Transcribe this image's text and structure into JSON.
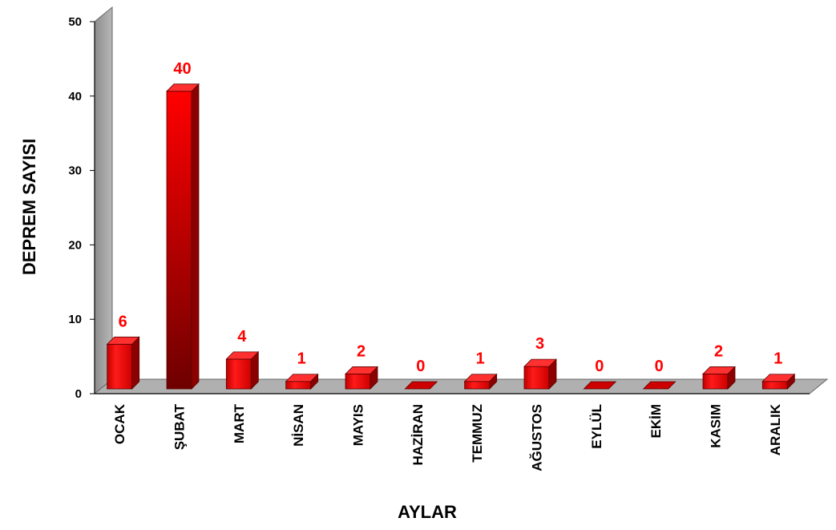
{
  "chart_data": {
    "type": "bar",
    "categories": [
      "OCAK",
      "ŞUBAT",
      "MART",
      "NİSAN",
      "MAYIS",
      "HAZİRAN",
      "TEMMUZ",
      "AĞUSTOS",
      "EYLÜL",
      "EKİM",
      "KASIM",
      "ARALIK"
    ],
    "values": [
      6,
      40,
      4,
      1,
      2,
      0,
      1,
      3,
      0,
      0,
      2,
      1
    ],
    "xlabel": "AYLAR",
    "ylabel": "DEPREM SAYISI",
    "ylim": [
      0,
      50
    ],
    "yticks": [
      0,
      10,
      20,
      30,
      40,
      50
    ],
    "grid": false,
    "three_d": true,
    "colors": {
      "bar": "#ff0000",
      "bar_dark": "#8b0000",
      "wall": "#a6a6a6",
      "floor": "#b3b3b3",
      "label": "#ff0000"
    }
  }
}
